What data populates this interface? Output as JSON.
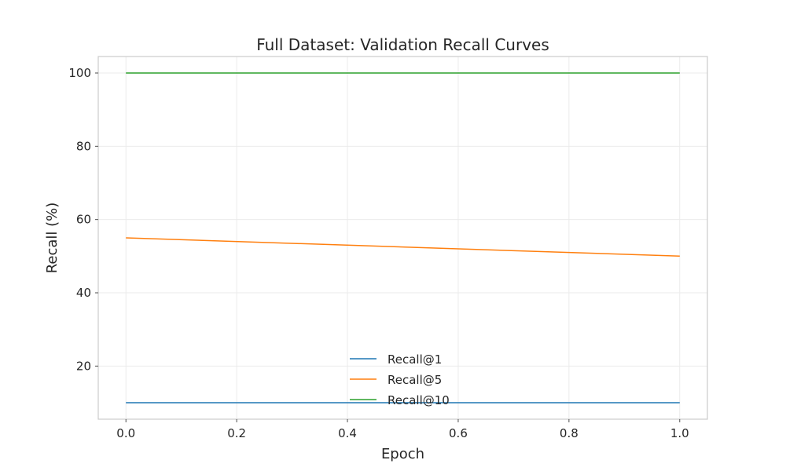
{
  "chart_data": {
    "type": "line",
    "title": "Full Dataset: Validation Recall Curves",
    "xlabel": "Epoch",
    "ylabel": "Recall (%)",
    "xlim": [
      -0.05,
      1.05
    ],
    "ylim": [
      5.5,
      104.5
    ],
    "xticks": [
      "0.0",
      "0.2",
      "0.4",
      "0.6",
      "0.8",
      "1.0"
    ],
    "yticks": [
      "20",
      "40",
      "60",
      "80",
      "100"
    ],
    "grid": true,
    "legend_position": "lower center",
    "x": [
      0.0,
      1.0
    ],
    "series": [
      {
        "name": "Recall@1",
        "values": [
          10,
          10
        ],
        "color": "#1f77b4"
      },
      {
        "name": "Recall@5",
        "values": [
          55,
          50
        ],
        "color": "#ff7f0e"
      },
      {
        "name": "Recall@10",
        "values": [
          100,
          100
        ],
        "color": "#2ca02c"
      }
    ]
  }
}
